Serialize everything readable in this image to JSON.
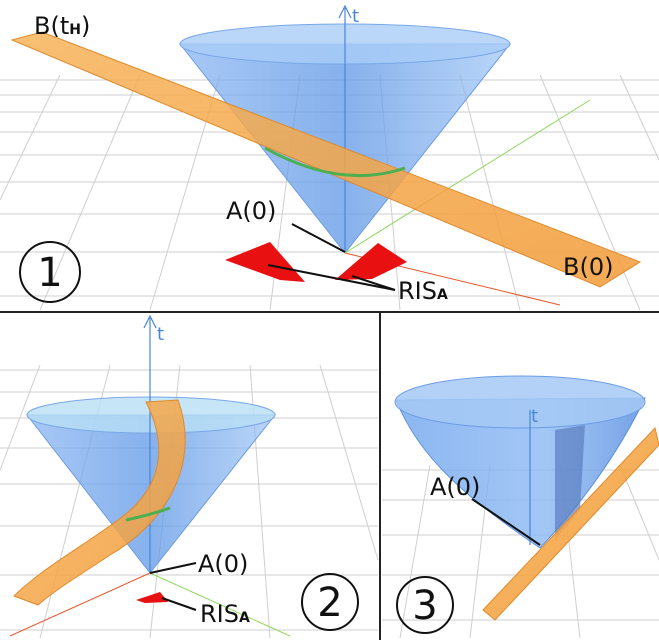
{
  "panels": [
    {
      "number": "1",
      "labels": {
        "b_th_main": "B(t",
        "b_th_sub": "H",
        "b_th_close": ")",
        "a0": "A(0)",
        "b0": "B(0)",
        "ris_main": "RIS",
        "ris_sub": "A",
        "t_axis": "t"
      }
    },
    {
      "number": "2",
      "labels": {
        "a0": "A(0)",
        "ris_main": "RIS",
        "ris_sub": "A",
        "t_axis": "t"
      }
    },
    {
      "number": "3",
      "labels": {
        "a0": "A(0)",
        "t_axis": "t"
      }
    }
  ],
  "colors": {
    "cone": "#7fb0f0",
    "plane": "#f5a340",
    "ris": "#e81010",
    "axis": "#4a86d8",
    "divider": "#222222"
  }
}
